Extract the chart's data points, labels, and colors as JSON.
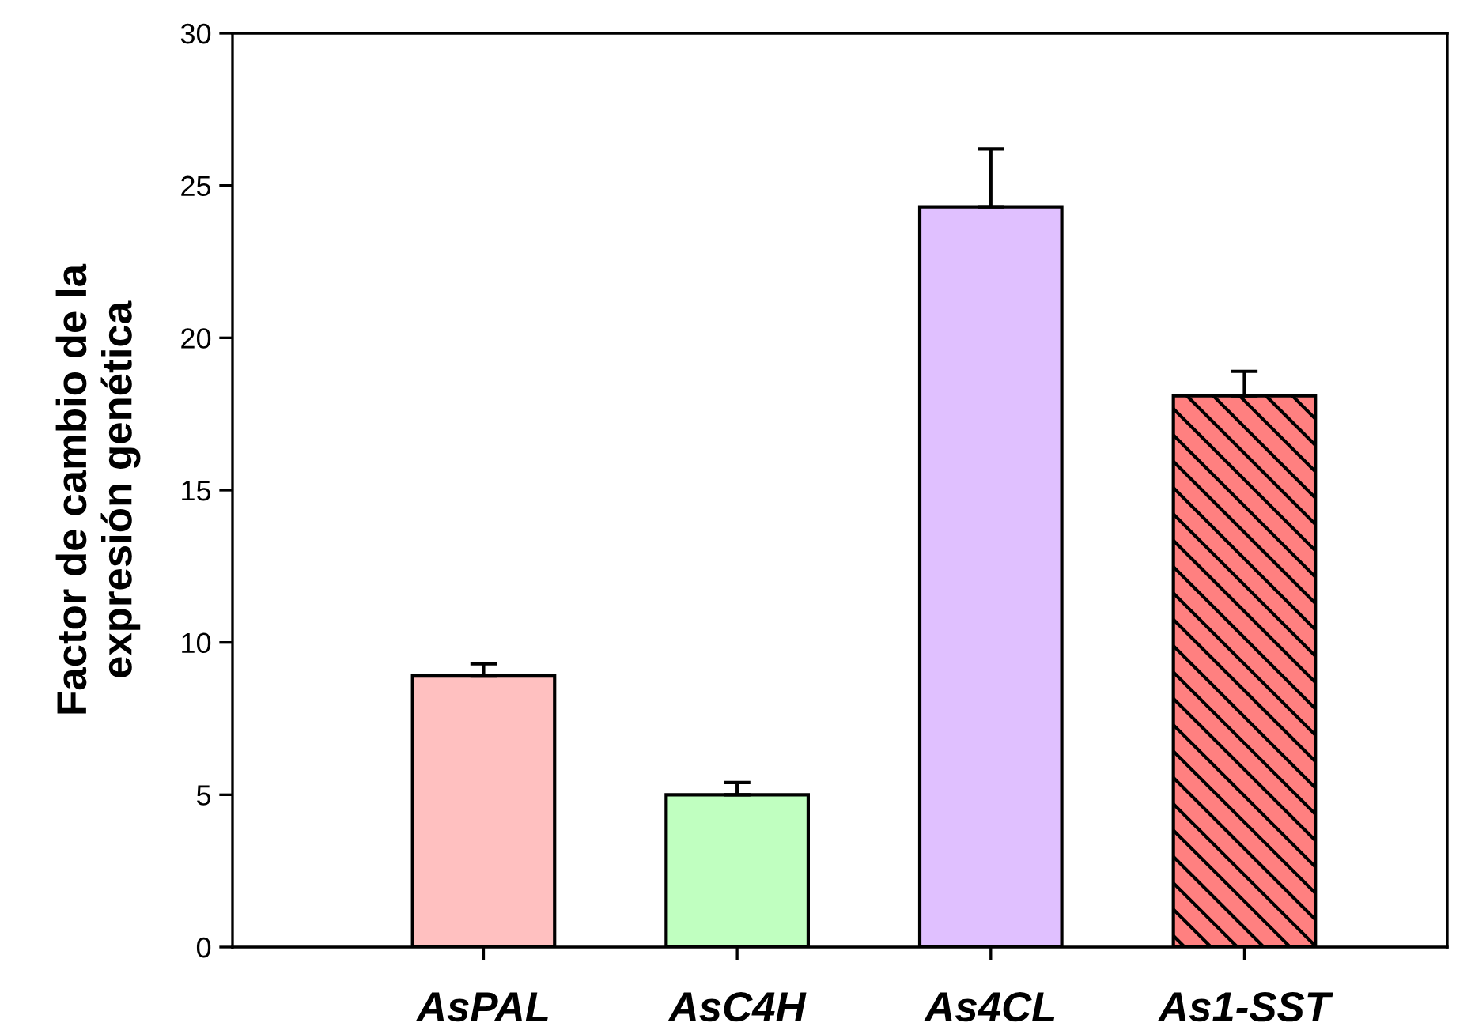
{
  "chart_data": {
    "type": "bar",
    "ylabel": "Factor de cambio de la\nexpresión genética",
    "categories": [
      "AsPAL",
      "AsC4H",
      "As4CL",
      "As1-SST"
    ],
    "values": [
      8.9,
      5.0,
      24.3,
      18.1
    ],
    "errors": [
      [
        8.9,
        9.3
      ],
      [
        5.0,
        5.4
      ],
      [
        24.3,
        26.2
      ],
      [
        18.1,
        18.9
      ]
    ],
    "colors": [
      "#ffc0c0",
      "#c0ffc0",
      "#e0c0ff",
      "#ff8080"
    ],
    "ylim": [
      0,
      30
    ],
    "yticks": [
      0,
      5,
      10,
      15,
      20,
      25,
      30
    ],
    "grid": false,
    "legend": false
  }
}
